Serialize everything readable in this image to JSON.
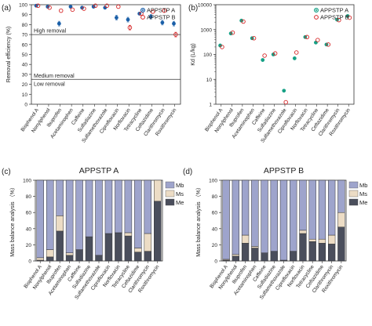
{
  "figure": {
    "panel_labels": [
      "(a)",
      "(b)",
      "(c)",
      "(d)"
    ]
  },
  "chart_data": [
    {
      "panel": "(a)",
      "type": "scatter",
      "title": "",
      "xlabel": "",
      "ylabel": "Removal efficiency (%)",
      "ylim": [
        0,
        100
      ],
      "yticks": [
        0,
        10,
        20,
        30,
        40,
        50,
        60,
        70,
        80,
        90,
        100
      ],
      "categories": [
        "Bisphenol A",
        "Nonylphenol",
        "Ibuprofen",
        "Acetaminophen",
        "Caffeine",
        "Sulfadiazine",
        "Sulfamethoxazole",
        "Ciprofloxacin",
        "Norfloxacin",
        "Tetracycline",
        "Ceftazidime",
        "Clarithromycin",
        "Roxithromycin"
      ],
      "series": [
        {
          "name": "APPSTP A",
          "marker": "filled-circle",
          "color": "#1a5fa8",
          "values": [
            99,
            98,
            81,
            98,
            97,
            98,
            97,
            87,
            85,
            91,
            88,
            82,
            81
          ]
        },
        {
          "name": "APPSTP B",
          "marker": "open-circle",
          "color": "#d62728",
          "values": [
            99,
            97,
            94,
            95,
            96,
            99,
            99,
            98,
            77,
            91,
            93,
            94,
            70
          ]
        }
      ],
      "hlines": [
        {
          "y": 70,
          "label": "High removal"
        },
        {
          "y": 25,
          "label": "Medium removal"
        },
        {
          "y": 25,
          "label": "Low removal"
        }
      ],
      "legend": "top-right",
      "grid": false
    },
    {
      "panel": "(b)",
      "type": "scatter",
      "title": "",
      "xlabel": "",
      "ylabel": "Kd (L/kg)",
      "yscale": "log",
      "ylim": [
        1,
        10000
      ],
      "yticks": [
        1,
        10,
        100,
        1000,
        10000
      ],
      "categories": [
        "Bisphenol A",
        "Nonylphenol",
        "Ibuprofen",
        "Acetaminophen",
        "Caffeine",
        "Sulfadiazine",
        "Sulfamethoxazole",
        "Ciprofloxacin",
        "Norfloxacin",
        "Tetracycline",
        "Ceftazidime",
        "Clarithromycin",
        "Roxithromycin"
      ],
      "series": [
        {
          "name": "APPSTP A",
          "marker": "filled-circle",
          "color": "#16a085",
          "values": [
            230,
            700,
            2300,
            450,
            60,
            100,
            3.5,
            70,
            500,
            300,
            250,
            2500,
            3500
          ]
        },
        {
          "name": "APPSTP B",
          "marker": "open-circle",
          "color": "#d62728",
          "values": [
            200,
            750,
            2100,
            450,
            90,
            110,
            1.2,
            120,
            500,
            380,
            250,
            2400,
            3000
          ]
        }
      ],
      "legend": "top-right",
      "grid": false
    },
    {
      "panel": "(c)",
      "type": "bar",
      "stacked": true,
      "title": "APPSTP A",
      "xlabel": "",
      "ylabel": "Mass balance analysis （%）",
      "ylim": [
        0,
        100
      ],
      "yticks": [
        0,
        20,
        40,
        60,
        80,
        100
      ],
      "categories": [
        "Bisphenol A",
        "Nonylphenol",
        "Ibuprofen",
        "Acetaminophen",
        "Caffeine",
        "Sulfadiazine",
        "Sulfamethoxazole",
        "Ciprofloxacin",
        "Norfloxacin",
        "Tetracycline",
        "Ceftazidime",
        "Clarithromycin",
        "Roxithromycin"
      ],
      "series": [
        {
          "name": "Me",
          "color": "#4a4e5c",
          "values": [
            1,
            5,
            37,
            7,
            14,
            30,
            7,
            34,
            35,
            31,
            11,
            12,
            74
          ]
        },
        {
          "name": "Ms",
          "color": "#ecdcc5",
          "values": [
            3,
            9,
            19,
            3,
            0,
            0,
            0,
            0,
            0,
            4,
            5,
            22,
            26
          ]
        },
        {
          "name": "Mb",
          "color": "#9ea4cc",
          "values": [
            96,
            86,
            44,
            90,
            86,
            70,
            93,
            66,
            65,
            65,
            84,
            66,
            0
          ]
        }
      ],
      "legend": "right"
    },
    {
      "panel": "(d)",
      "type": "bar",
      "stacked": true,
      "title": "APPSTP B",
      "xlabel": "",
      "ylabel": "Mass balance analysis （%）",
      "ylim": [
        0,
        100
      ],
      "yticks": [
        0,
        20,
        40,
        60,
        80,
        100
      ],
      "categories": [
        "Bisphenol A",
        "Nonylphenol",
        "Ibuprofen",
        "Acetaminophen",
        "Caffeine",
        "Sulfadiazine",
        "Sulfamethoxazole",
        "Ciprofloxacin",
        "Norfloxacin",
        "Tetracycline",
        "Ceftazidime",
        "Clarithromycin",
        "Roxithromycin"
      ],
      "series": [
        {
          "name": "Me",
          "color": "#4a4e5c",
          "values": [
            1,
            6,
            22,
            16,
            10,
            12,
            1,
            12,
            34,
            24,
            22,
            21,
            42
          ]
        },
        {
          "name": "Ms",
          "color": "#ecdcc5",
          "values": [
            1,
            2,
            10,
            2,
            0,
            0,
            0,
            0,
            4,
            3,
            5,
            11,
            18
          ]
        },
        {
          "name": "Mb",
          "color": "#9ea4cc",
          "values": [
            98,
            92,
            68,
            82,
            90,
            88,
            99,
            88,
            62,
            73,
            73,
            68,
            40
          ]
        }
      ],
      "legend": "right"
    }
  ]
}
